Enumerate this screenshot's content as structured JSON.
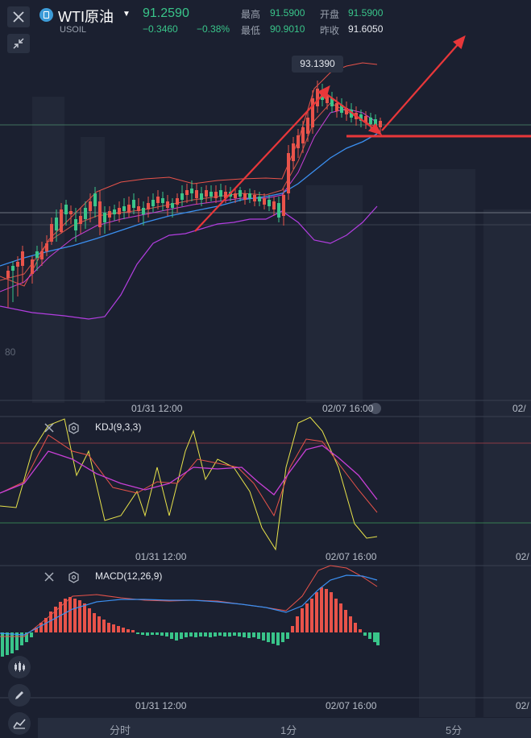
{
  "header": {
    "symbol_name": "WTI原油",
    "symbol_code": "USOIL",
    "price": "91.2590",
    "change": "−0.3460",
    "change_pct": "−0.38%",
    "high_label": "最高",
    "high_value": "91.5900",
    "open_label": "开盘",
    "open_value": "91.5900",
    "low_label": "最低",
    "low_value": "90.9010",
    "prev_label": "昨收",
    "prev_value": "91.6050"
  },
  "main_chart": {
    "max_price_tag": "93.1390",
    "left_value": "80",
    "x_labels": [
      "01/31 12:00",
      "02/07 16:00",
      "02/"
    ]
  },
  "kdj": {
    "label": "KDJ(9,3,3)",
    "x_labels": [
      "01/31 12:00",
      "02/07 16:00",
      "02/"
    ]
  },
  "macd": {
    "label": "MACD(12,26,9)",
    "x_labels": [
      "01/31 12:00",
      "02/07 16:00",
      "02/"
    ]
  },
  "bottom_tabs": [
    "分时",
    "1分",
    "5分"
  ],
  "colors": {
    "background": "#1b2030",
    "up": "#e8534a",
    "down": "#39c58a",
    "annotation": "#e8373a"
  },
  "icons": [
    "close-icon",
    "collapse-icon",
    "symbol-icon",
    "caret-down-icon",
    "eye-off-icon",
    "settings-icon",
    "candlestick-icon",
    "pencil-icon",
    "line-chart-icon"
  ]
}
